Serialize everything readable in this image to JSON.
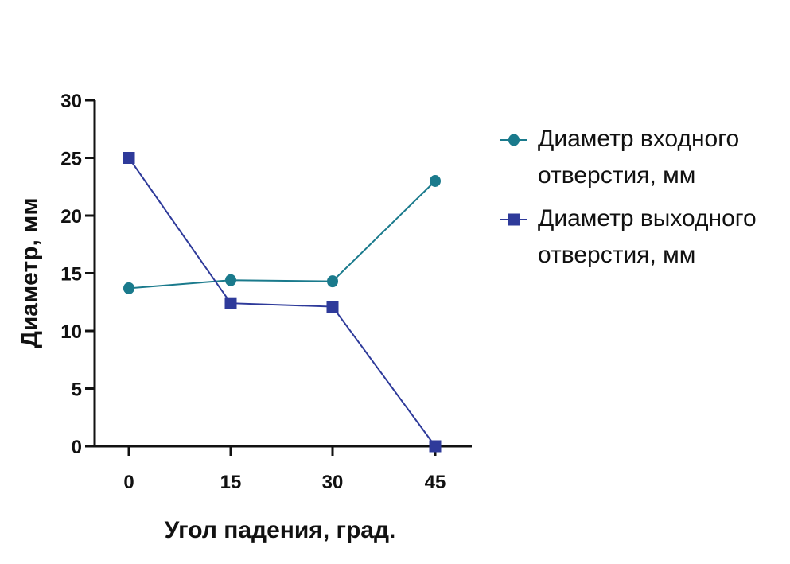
{
  "chart_data": {
    "type": "line",
    "x": [
      0,
      15,
      30,
      45
    ],
    "categories": [
      "0",
      "15",
      "30",
      "45"
    ],
    "xlabel": "Угол падения, град.",
    "ylabel": "Диаметр, мм",
    "ylim": [
      0,
      30
    ],
    "yticks": [
      "0",
      "5",
      "10",
      "15",
      "20",
      "25",
      "30"
    ],
    "grid": false,
    "legend_position": "right",
    "series": [
      {
        "name": "Диаметр входного отверстия, мм",
        "name_lines": [
          "Диаметр входного",
          "отверстия, мм"
        ],
        "values": [
          13.7,
          14.4,
          14.3,
          23.0
        ],
        "color": "#1a7a8c",
        "marker": "circle"
      },
      {
        "name": "Диаметр выходного отверстия, мм",
        "name_lines": [
          "Диаметр выходного",
          "отверстия, мм"
        ],
        "values": [
          25.0,
          12.4,
          12.1,
          0.0
        ],
        "color": "#2e3a9a",
        "marker": "square"
      }
    ]
  }
}
